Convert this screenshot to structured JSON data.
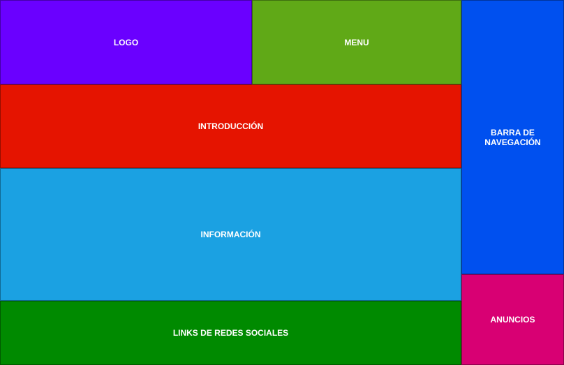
{
  "blocks": {
    "logo": {
      "label": "LOGO",
      "color": "#6a00ff"
    },
    "menu": {
      "label": "MENU",
      "color": "#60a917"
    },
    "intro": {
      "label": "INTRODUCCIÓN",
      "color": "#e51400"
    },
    "info": {
      "label": "INFORMACIÓN",
      "color": "#1ba1e2"
    },
    "social": {
      "label": "LINKS DE REDES SOCIALES",
      "color": "#008a00"
    },
    "nav": {
      "label": "BARRA DE NAVEGACIÓN",
      "color": "#0050ef"
    },
    "ads": {
      "label": "ANUNCIOS",
      "color": "#d80073"
    }
  }
}
